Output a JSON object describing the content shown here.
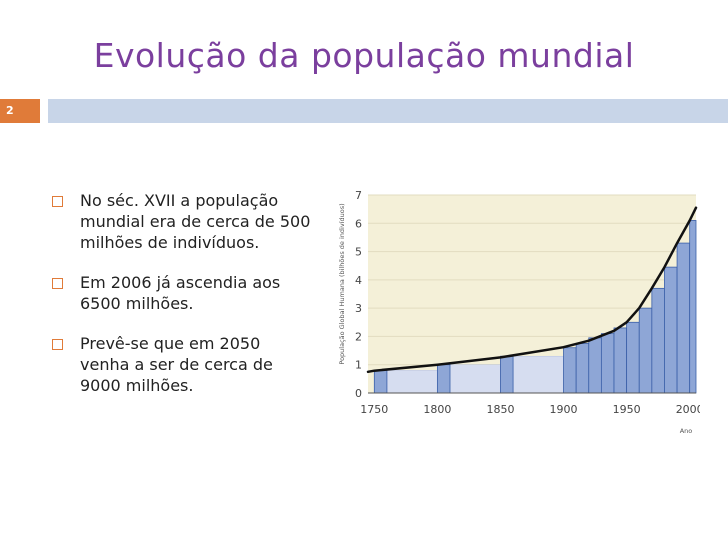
{
  "slide": {
    "title": "Evolução da população mundial",
    "number": "2",
    "accent_color": "#e07b39",
    "title_color": "#7b3f9e"
  },
  "bullets": [
    {
      "text": "No séc. XVII a população mundial era de cerca de 500 milhões de indivíduos."
    },
    {
      "text": "Em 2006 já ascendia aos 6500 milhões."
    },
    {
      "text": "Prevê-se que em 2050 venha a ser de cerca de 9000 milhões."
    }
  ],
  "chart_data": {
    "type": "bar",
    "ylabel": "População Global Humana (bilhões de indivíduos)",
    "xlabel": "Ano",
    "xlim": [
      1745,
      2005
    ],
    "ylim": [
      0,
      7
    ],
    "x_ticks": [
      "1750",
      "1800",
      "1850",
      "1900",
      "1950",
      "2000"
    ],
    "y_ticks": [
      "0",
      "1",
      "2",
      "3",
      "4",
      "5",
      "6",
      "7"
    ],
    "bars": [
      {
        "x0": 1750,
        "x1": 1760,
        "value": 0.8
      },
      {
        "x0": 1800,
        "x1": 1810,
        "value": 1.0
      },
      {
        "x0": 1850,
        "x1": 1860,
        "value": 1.3
      },
      {
        "x0": 1900,
        "x1": 1910,
        "value": 1.6
      },
      {
        "x0": 1910,
        "x1": 1920,
        "value": 1.75
      },
      {
        "x0": 1920,
        "x1": 1930,
        "value": 1.95
      },
      {
        "x0": 1930,
        "x1": 1940,
        "value": 2.1
      },
      {
        "x0": 1940,
        "x1": 1950,
        "value": 2.3
      },
      {
        "x0": 1950,
        "x1": 1960,
        "value": 2.5
      },
      {
        "x0": 1960,
        "x1": 1970,
        "value": 3.0
      },
      {
        "x0": 1970,
        "x1": 1980,
        "value": 3.7
      },
      {
        "x0": 1980,
        "x1": 1990,
        "value": 4.45
      },
      {
        "x0": 1990,
        "x1": 2000,
        "value": 5.3
      },
      {
        "x0": 2000,
        "x1": 2005,
        "value": 6.1
      }
    ],
    "background_bands": [
      {
        "x0": 1760,
        "x1": 1800,
        "value": 0.8
      },
      {
        "x0": 1810,
        "x1": 1850,
        "value": 1.0
      },
      {
        "x0": 1860,
        "x1": 1900,
        "value": 1.3
      }
    ],
    "curve": {
      "x": [
        1745,
        1750,
        1800,
        1850,
        1900,
        1920,
        1940,
        1950,
        1960,
        1970,
        1980,
        1990,
        2000,
        2005
      ],
      "y": [
        0.75,
        0.79,
        1.0,
        1.26,
        1.62,
        1.85,
        2.2,
        2.5,
        3.0,
        3.7,
        4.45,
        5.3,
        6.1,
        6.55
      ]
    },
    "colors": {
      "bar": "#8ea6d6",
      "bar_border": "#3a5fa8",
      "band": "#d6ddf0",
      "plot_bg": "#f4f0d8",
      "curve": "#111111"
    }
  }
}
